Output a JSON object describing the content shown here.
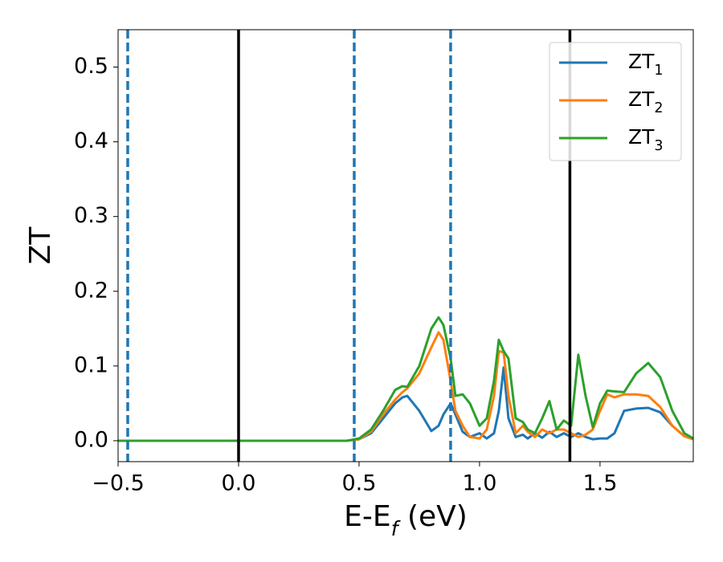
{
  "chart_data": {
    "type": "line",
    "xlabel": "E-E_f (eV)",
    "ylabel": "ZT",
    "xlim": [
      -0.5,
      1.887
    ],
    "ylim": [
      -0.028,
      0.55
    ],
    "xticks": [
      {
        "value": -0.5,
        "label": "−0.5"
      },
      {
        "value": 0,
        "label": "0.0"
      },
      0.5,
      {
        "value": 1,
        "label": "1.0"
      },
      1.5
    ],
    "yticks": [
      {
        "value": 0,
        "label": "0.0"
      },
      0.1,
      0.2,
      0.3,
      0.4,
      0.5
    ],
    "grid": false,
    "legend": "upper right",
    "vlines": [
      {
        "x": -0.46,
        "style": "dashed",
        "color": "#1f77b4"
      },
      {
        "x": 0,
        "style": "solid",
        "color": "#000000"
      },
      {
        "x": 0.48,
        "style": "dashed",
        "color": "#1f77b4"
      },
      {
        "x": 0.88,
        "style": "dashed",
        "color": "#1f77b4"
      },
      {
        "x": 1.375,
        "style": "solid",
        "color": "#000000"
      }
    ],
    "x": [
      -0.5,
      0.0,
      0.4,
      0.45,
      0.5,
      0.55,
      0.6,
      0.65,
      0.68,
      0.7,
      0.75,
      0.8,
      0.83,
      0.85,
      0.88,
      0.9,
      0.93,
      0.96,
      1.0,
      1.03,
      1.06,
      1.08,
      1.1,
      1.12,
      1.15,
      1.18,
      1.2,
      1.23,
      1.26,
      1.29,
      1.32,
      1.35,
      1.38,
      1.41,
      1.44,
      1.47,
      1.5,
      1.53,
      1.56,
      1.6,
      1.65,
      1.7,
      1.75,
      1.8,
      1.85,
      1.887
    ],
    "series": [
      {
        "name": "ZT_1",
        "color": "#1f77b4",
        "values": [
          0,
          0,
          0,
          0,
          0.002,
          0.01,
          0.03,
          0.05,
          0.058,
          0.06,
          0.04,
          0.013,
          0.02,
          0.035,
          0.05,
          0.035,
          0.012,
          0.005,
          0.01,
          0.003,
          0.01,
          0.04,
          0.098,
          0.03,
          0.005,
          0.008,
          0.003,
          0.01,
          0.004,
          0.012,
          0.005,
          0.01,
          0.005,
          0.01,
          0.005,
          0.002,
          0.003,
          0.003,
          0.01,
          0.04,
          0.043,
          0.044,
          0.038,
          0.02,
          0.006,
          0.002
        ]
      },
      {
        "name": "ZT_2",
        "color": "#ff7f0e",
        "values": [
          0,
          0,
          0,
          0,
          0.002,
          0.012,
          0.035,
          0.055,
          0.065,
          0.07,
          0.09,
          0.125,
          0.145,
          0.135,
          0.08,
          0.04,
          0.02,
          0.005,
          0.003,
          0.015,
          0.06,
          0.12,
          0.118,
          0.06,
          0.01,
          0.02,
          0.012,
          0.005,
          0.015,
          0.01,
          0.015,
          0.015,
          0.01,
          0.005,
          0.008,
          0.015,
          0.04,
          0.062,
          0.058,
          0.062,
          0.062,
          0.06,
          0.045,
          0.02,
          0.006,
          0.002
        ]
      },
      {
        "name": "ZT_3",
        "color": "#2ca02c",
        "values": [
          0,
          0,
          0,
          0,
          0.003,
          0.015,
          0.04,
          0.068,
          0.073,
          0.072,
          0.1,
          0.15,
          0.165,
          0.155,
          0.11,
          0.06,
          0.062,
          0.05,
          0.02,
          0.03,
          0.08,
          0.135,
          0.12,
          0.11,
          0.03,
          0.025,
          0.015,
          0.01,
          0.03,
          0.053,
          0.015,
          0.027,
          0.02,
          0.115,
          0.06,
          0.018,
          0.05,
          0.067,
          0.066,
          0.065,
          0.09,
          0.104,
          0.085,
          0.04,
          0.01,
          0.003
        ]
      }
    ]
  }
}
